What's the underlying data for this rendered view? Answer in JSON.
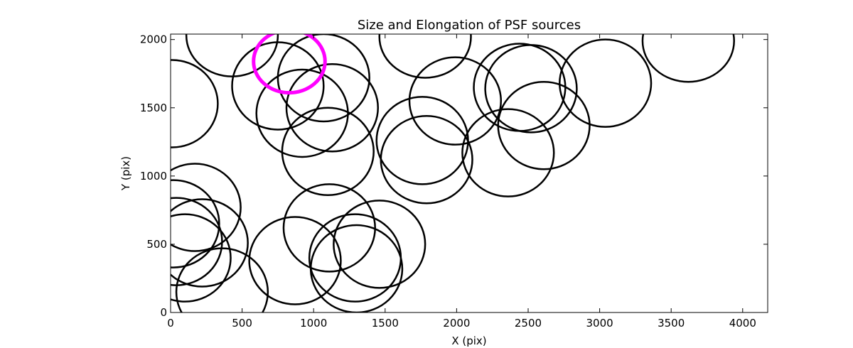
{
  "chart_data": {
    "type": "scatter",
    "title": "Size and Elongation of PSF sources",
    "xlabel": "X (pix)",
    "ylabel": "Y (pix)",
    "xlim": [
      0,
      4175
    ],
    "ylim": [
      0,
      2040
    ],
    "xticks": [
      0,
      500,
      1000,
      1500,
      2000,
      2500,
      3000,
      3500,
      4000
    ],
    "yticks": [
      0,
      500,
      1000,
      1500,
      2000
    ],
    "grid": false,
    "marker": "ellipse outlines (black)",
    "highlight_color": "#ff00ff",
    "sources": [
      {
        "x": 10,
        "y": 1530,
        "rx": 320,
        "ry": 320
      },
      {
        "x": 430,
        "y": 2030,
        "rx": 320,
        "ry": 300
      },
      {
        "x": 750,
        "y": 1660,
        "rx": 320,
        "ry": 320
      },
      {
        "x": 920,
        "y": 1460,
        "rx": 320,
        "ry": 320
      },
      {
        "x": 1070,
        "y": 1720,
        "rx": 320,
        "ry": 320
      },
      {
        "x": 1130,
        "y": 1500,
        "rx": 320,
        "ry": 320
      },
      {
        "x": 1100,
        "y": 1180,
        "rx": 320,
        "ry": 320
      },
      {
        "x": 1780,
        "y": 2020,
        "rx": 320,
        "ry": 300
      },
      {
        "x": 1990,
        "y": 1550,
        "rx": 320,
        "ry": 320
      },
      {
        "x": 1760,
        "y": 1260,
        "rx": 320,
        "ry": 320
      },
      {
        "x": 1790,
        "y": 1120,
        "rx": 320,
        "ry": 320
      },
      {
        "x": 2360,
        "y": 1170,
        "rx": 320,
        "ry": 320
      },
      {
        "x": 2440,
        "y": 1650,
        "rx": 320,
        "ry": 320
      },
      {
        "x": 2520,
        "y": 1640,
        "rx": 320,
        "ry": 320
      },
      {
        "x": 2610,
        "y": 1370,
        "rx": 320,
        "ry": 320
      },
      {
        "x": 3040,
        "y": 1680,
        "rx": 320,
        "ry": 320
      },
      {
        "x": 3620,
        "y": 1990,
        "rx": 320,
        "ry": 300
      },
      {
        "x": 170,
        "y": 770,
        "rx": 320,
        "ry": 320
      },
      {
        "x": 20,
        "y": 650,
        "rx": 320,
        "ry": 320
      },
      {
        "x": 40,
        "y": 520,
        "rx": 320,
        "ry": 320
      },
      {
        "x": 100,
        "y": 400,
        "rx": 320,
        "ry": 320
      },
      {
        "x": 220,
        "y": 510,
        "rx": 320,
        "ry": 320
      },
      {
        "x": 360,
        "y": 150,
        "rx": 320,
        "ry": 320
      },
      {
        "x": 870,
        "y": 380,
        "rx": 320,
        "ry": 320
      },
      {
        "x": 1110,
        "y": 620,
        "rx": 320,
        "ry": 320
      },
      {
        "x": 1290,
        "y": 400,
        "rx": 320,
        "ry": 320
      },
      {
        "x": 1460,
        "y": 500,
        "rx": 320,
        "ry": 320
      },
      {
        "x": 1300,
        "y": 320,
        "rx": 320,
        "ry": 320
      }
    ],
    "highlighted_source": {
      "x": 830,
      "y": 1840,
      "rx": 250,
      "ry": 230
    }
  }
}
